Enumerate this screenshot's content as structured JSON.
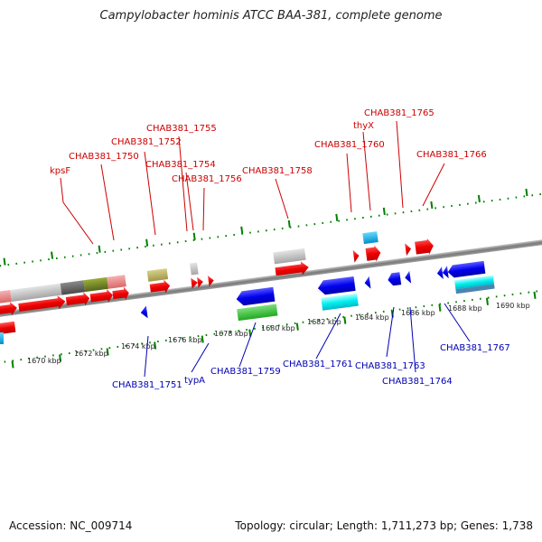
{
  "title": "Campylobacter hominis ATCC BAA-381, complete genome",
  "footer": {
    "accession": "Accession: NC_009714",
    "info": "Topology: circular; Length: 1,711,273 bp; Genes: 1,738"
  },
  "scale_labels": [
    "1670 kbp",
    "1672 kbp",
    "1674 kbp",
    "1676 kbp",
    "1678 kbp",
    "1680 kbp",
    "1682 kbp",
    "1684 kbp",
    "1686 kbp",
    "1688 kbp",
    "1690 kbp"
  ],
  "top_labels": [
    "kpsF",
    "CHAB381_1750",
    "CHAB381_1752",
    "CHAB381_1755",
    "CHAB381_1754",
    "CHAB381_1756",
    "CHAB381_1758",
    "CHAB381_1760",
    "thyX",
    "CHAB381_1765",
    "CHAB381_1766"
  ],
  "bottom_labels": [
    "CHAB381_1751",
    "typA",
    "CHAB381_1759",
    "CHAB381_1761",
    "CHAB381_1763",
    "CHAB381_1764",
    "CHAB381_1767"
  ],
  "colors": {
    "top_label": "#cc0000",
    "bottom_label": "#0000b3",
    "forward_gene": "#ee0000",
    "reverse_gene": "#0000ee",
    "axis": "#888888",
    "tick": "#008000"
  }
}
